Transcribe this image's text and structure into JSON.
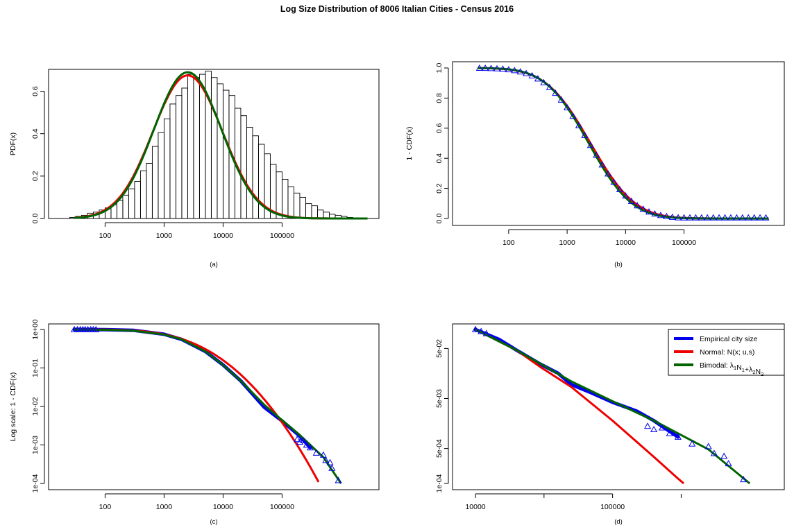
{
  "title": "Log Size Distribution of 8006 Italian Cities - Census 2016",
  "colors": {
    "empirical": "#0000ee",
    "normal": "#ee0000",
    "bimodal": "#006400",
    "frame": "#000000"
  },
  "chart_data": [
    {
      "id": "a",
      "type": "histogram",
      "caption": "(a)",
      "ylabel": "PDF(x)",
      "xscale": "log10",
      "xlim": [
        20,
        3000000
      ],
      "ylim": [
        0,
        0.7
      ],
      "xticks": [
        100,
        1000,
        10000,
        100000
      ],
      "xticklabels": [
        "100",
        "1000",
        "10000",
        "100000"
      ],
      "yticks": [
        0,
        0.2,
        0.4,
        0.6
      ],
      "yticklabels": [
        "0.0",
        "0.2",
        "0.4",
        "0.6"
      ],
      "hist": {
        "log10_start": 1.4,
        "bin_width": 0.1,
        "heights": [
          0.005,
          0.01,
          0.015,
          0.025,
          0.03,
          0.04,
          0.05,
          0.065,
          0.085,
          0.11,
          0.14,
          0.175,
          0.225,
          0.26,
          0.34,
          0.405,
          0.47,
          0.54,
          0.58,
          0.615,
          0.68,
          0.665,
          0.68,
          0.695,
          0.665,
          0.635,
          0.605,
          0.58,
          0.52,
          0.485,
          0.43,
          0.39,
          0.35,
          0.305,
          0.255,
          0.22,
          0.185,
          0.15,
          0.12,
          0.1,
          0.07,
          0.06,
          0.04,
          0.03,
          0.02,
          0.015,
          0.01,
          0.005
        ]
      },
      "series": [
        {
          "name": "Normal: N(x; u,s)",
          "color_key": "normal",
          "kind": "normal_pdf",
          "params": {
            "mu": 3.4,
            "sigma": 0.59,
            "peak": 0.675
          },
          "x_range": [
            30,
            2800000
          ]
        },
        {
          "name": "Bimodal: λ1N1+λ2N2",
          "color_key": "bimodal",
          "kind": "normal_pdf",
          "params": {
            "mu": 3.4,
            "sigma": 0.575,
            "peak": 0.69
          },
          "x_range": [
            30,
            2800000
          ]
        }
      ]
    },
    {
      "id": "b",
      "type": "line",
      "caption": "(b)",
      "ylabel": "1 - CDF(x)",
      "xscale": "log10",
      "xlim": [
        20,
        3000000
      ],
      "ylim": [
        0,
        1.0
      ],
      "xticks": [
        100,
        1000,
        10000,
        100000
      ],
      "xticklabels": [
        "100",
        "1000",
        "10000",
        "100000"
      ],
      "yticks": [
        0,
        0.2,
        0.4,
        0.6,
        0.8,
        1.0
      ],
      "yticklabels": [
        "0.0",
        "0.2",
        "0.4",
        "0.6",
        "0.8",
        "1.0"
      ],
      "empirical_points": {
        "kind": "normal_sf",
        "params": {
          "mu": 3.38,
          "sigma": 0.6
        },
        "log10_start": 1.5,
        "log10_step": 0.1,
        "log10_end": 6.4,
        "y_floor": 0.005
      },
      "series": [
        {
          "name": "Normal: N(x; u,s)",
          "color_key": "normal",
          "kind": "normal_sf",
          "params": {
            "mu": 3.4,
            "sigma": 0.6
          },
          "x_range": [
            30,
            2800000
          ]
        },
        {
          "name": "Bimodal: λ1N1+λ2N2",
          "color_key": "bimodal",
          "kind": "normal_sf",
          "params": {
            "mu": 3.37,
            "sigma": 0.58
          },
          "x_range": [
            30,
            2800000
          ]
        }
      ]
    },
    {
      "id": "c",
      "type": "line",
      "caption": "(c)",
      "ylabel": "Log scale: 1 - CDF(x)",
      "xscale": "log10",
      "yscale": "log10",
      "xlim": [
        20,
        3000000
      ],
      "ylim": [
        0.0001,
        1
      ],
      "xticks": [
        100,
        1000,
        10000,
        100000
      ],
      "xticklabels": [
        "100",
        "1000",
        "10000",
        "100000"
      ],
      "yticks": [
        0.0001,
        0.001,
        0.01,
        0.1,
        1
      ],
      "yticklabels": [
        "1e-04",
        "1e-03",
        "1e-02",
        "1e-01",
        "1e+00"
      ],
      "empirical_curve": {
        "x": [
          30,
          100,
          300,
          1000,
          2000,
          5000,
          10000,
          20000,
          50000,
          100000,
          200000,
          300000
        ],
        "y": [
          0.998,
          0.99,
          0.95,
          0.75,
          0.55,
          0.27,
          0.12,
          0.046,
          0.0095,
          0.0042,
          0.0017,
          0.00085
        ]
      },
      "empirical_triangles": {
        "x": [
          30,
          34,
          38,
          42,
          46,
          51,
          57,
          63,
          70,
          180000,
          200000,
          230000,
          260000,
          300000,
          380000,
          500000,
          550000,
          650000,
          700000,
          900000
        ],
        "y": [
          0.998,
          0.998,
          0.997,
          0.997,
          0.997,
          0.996,
          0.996,
          0.995,
          0.995,
          0.0014,
          0.0012,
          0.0013,
          0.001,
          0.00085,
          0.00062,
          0.00055,
          0.0004,
          0.00035,
          0.00025,
          0.00012
        ]
      },
      "series": [
        {
          "name": "Normal: N(x; u,s)",
          "color_key": "normal",
          "kind": "normal_sf",
          "params": {
            "mu": 3.4,
            "sigma": 0.6
          },
          "x_range": [
            30,
            450000
          ]
        },
        {
          "name": "Bimodal: λ1N1+λ2N2",
          "color_key": "bimodal",
          "kind": "points",
          "x": [
            30,
            100,
            300,
            1000,
            2000,
            5000,
            10000,
            20000,
            50000,
            100000,
            200000,
            500000,
            1000000
          ],
          "y": [
            0.995,
            0.98,
            0.93,
            0.74,
            0.55,
            0.27,
            0.12,
            0.046,
            0.011,
            0.0044,
            0.0018,
            0.00048,
            0.0001
          ]
        }
      ]
    },
    {
      "id": "d",
      "type": "line",
      "caption": "(d)",
      "xscale": "log10",
      "yscale": "log10",
      "xlim": [
        9000,
        1500000
      ],
      "ylim": [
        0.0001,
        0.12
      ],
      "xticks": [
        10000,
        100000
      ],
      "xticklabels": [
        "10000",
        "100000"
      ],
      "minor_xticks": [
        31623,
        316228
      ],
      "yticks": [
        0.0001,
        0.0005,
        0.005,
        0.05
      ],
      "yticklabels": [
        "1e-04",
        "5e-04",
        "5e-03",
        "5e-02"
      ],
      "empirical_curve": {
        "x": [
          10000,
          15000,
          20000,
          30000,
          40000,
          50000,
          70000,
          100000,
          150000,
          200000,
          300000
        ],
        "y": [
          0.12,
          0.075,
          0.046,
          0.024,
          0.016,
          0.0095,
          0.0065,
          0.0042,
          0.0028,
          0.0018,
          0.00085
        ]
      },
      "empirical_triangles": {
        "x": [
          10000,
          11000,
          12000,
          180000,
          200000,
          230000,
          260000,
          300000,
          380000,
          500000,
          550000,
          650000,
          700000,
          900000
        ],
        "y": [
          0.12,
          0.11,
          0.1,
          0.0014,
          0.0012,
          0.0013,
          0.001,
          0.00085,
          0.00062,
          0.00055,
          0.0004,
          0.00035,
          0.00025,
          0.00012
        ]
      },
      "series": [
        {
          "name": "Normal: N(x; u,s)",
          "color_key": "normal",
          "kind": "points",
          "x": [
            10000,
            20000,
            30000,
            50000,
            100000,
            200000,
            300000,
            330000
          ],
          "y": [
            0.12,
            0.046,
            0.021,
            0.0085,
            0.0018,
            0.00034,
            0.000125,
            0.0001
          ]
        },
        {
          "name": "Bimodal: λ1N1+λ2N2",
          "color_key": "bimodal",
          "kind": "points",
          "x": [
            10000,
            20000,
            50000,
            100000,
            200000,
            500000,
            1000000
          ],
          "y": [
            0.12,
            0.046,
            0.011,
            0.0044,
            0.0018,
            0.00048,
            0.0001
          ]
        }
      ],
      "legend": {
        "position": "top-right",
        "entries": [
          {
            "label": "Empirical city size",
            "color_key": "empirical"
          },
          {
            "label": "Normal: N(x; u,s)",
            "color_key": "normal"
          },
          {
            "label": "Bimodal: λ1N1+λ2N2",
            "color_key": "bimodal",
            "rich": [
              [
                "Bimodal: λ",
                ""
              ],
              [
                "1",
                "sub"
              ],
              [
                "N",
                ""
              ],
              [
                "1",
                "sub"
              ],
              [
                "+λ",
                ""
              ],
              [
                "2",
                "sub"
              ],
              [
                "N",
                ""
              ],
              [
                "2",
                "sub"
              ]
            ]
          }
        ]
      }
    }
  ]
}
